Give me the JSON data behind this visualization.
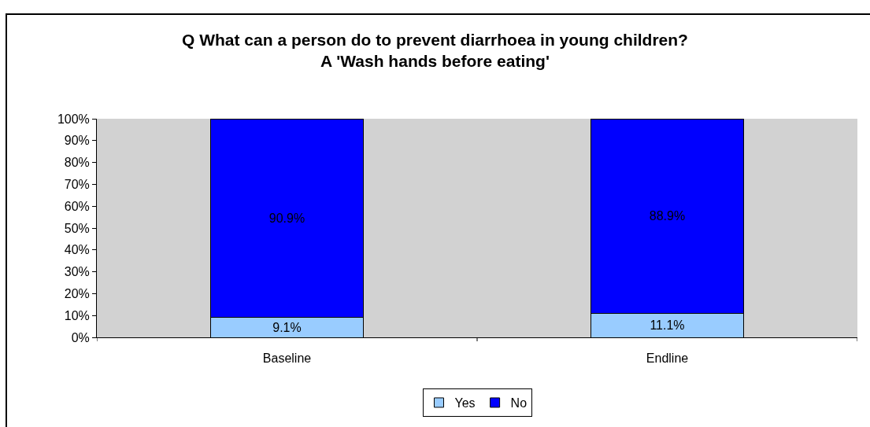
{
  "chart_data": {
    "type": "bar",
    "title": "Q What can a person do to prevent diarrhoea in young children?\nA 'Wash hands before eating'",
    "categories": [
      "Baseline",
      "Endline"
    ],
    "series": [
      {
        "name": "Yes",
        "color": "#99ccff",
        "values": [
          9.1,
          11.1
        ],
        "value_labels": [
          "9.1%",
          "11.1%"
        ]
      },
      {
        "name": "No",
        "color": "#0000ff",
        "values": [
          90.9,
          88.9
        ],
        "value_labels": [
          "90.9%",
          "88.9%"
        ]
      }
    ],
    "stacked": true,
    "ylim": [
      0,
      100
    ],
    "yticks": [
      {
        "value": 0,
        "label": "0%"
      },
      {
        "value": 10,
        "label": "10%"
      },
      {
        "value": 20,
        "label": "20%"
      },
      {
        "value": 30,
        "label": "30%"
      },
      {
        "value": 40,
        "label": "40%"
      },
      {
        "value": 50,
        "label": "50%"
      },
      {
        "value": 60,
        "label": "60%"
      },
      {
        "value": 70,
        "label": "70%"
      },
      {
        "value": 80,
        "label": "80%"
      },
      {
        "value": 90,
        "label": "90%"
      },
      {
        "value": 100,
        "label": "100%"
      }
    ],
    "legend": "bottom",
    "grid": false
  }
}
